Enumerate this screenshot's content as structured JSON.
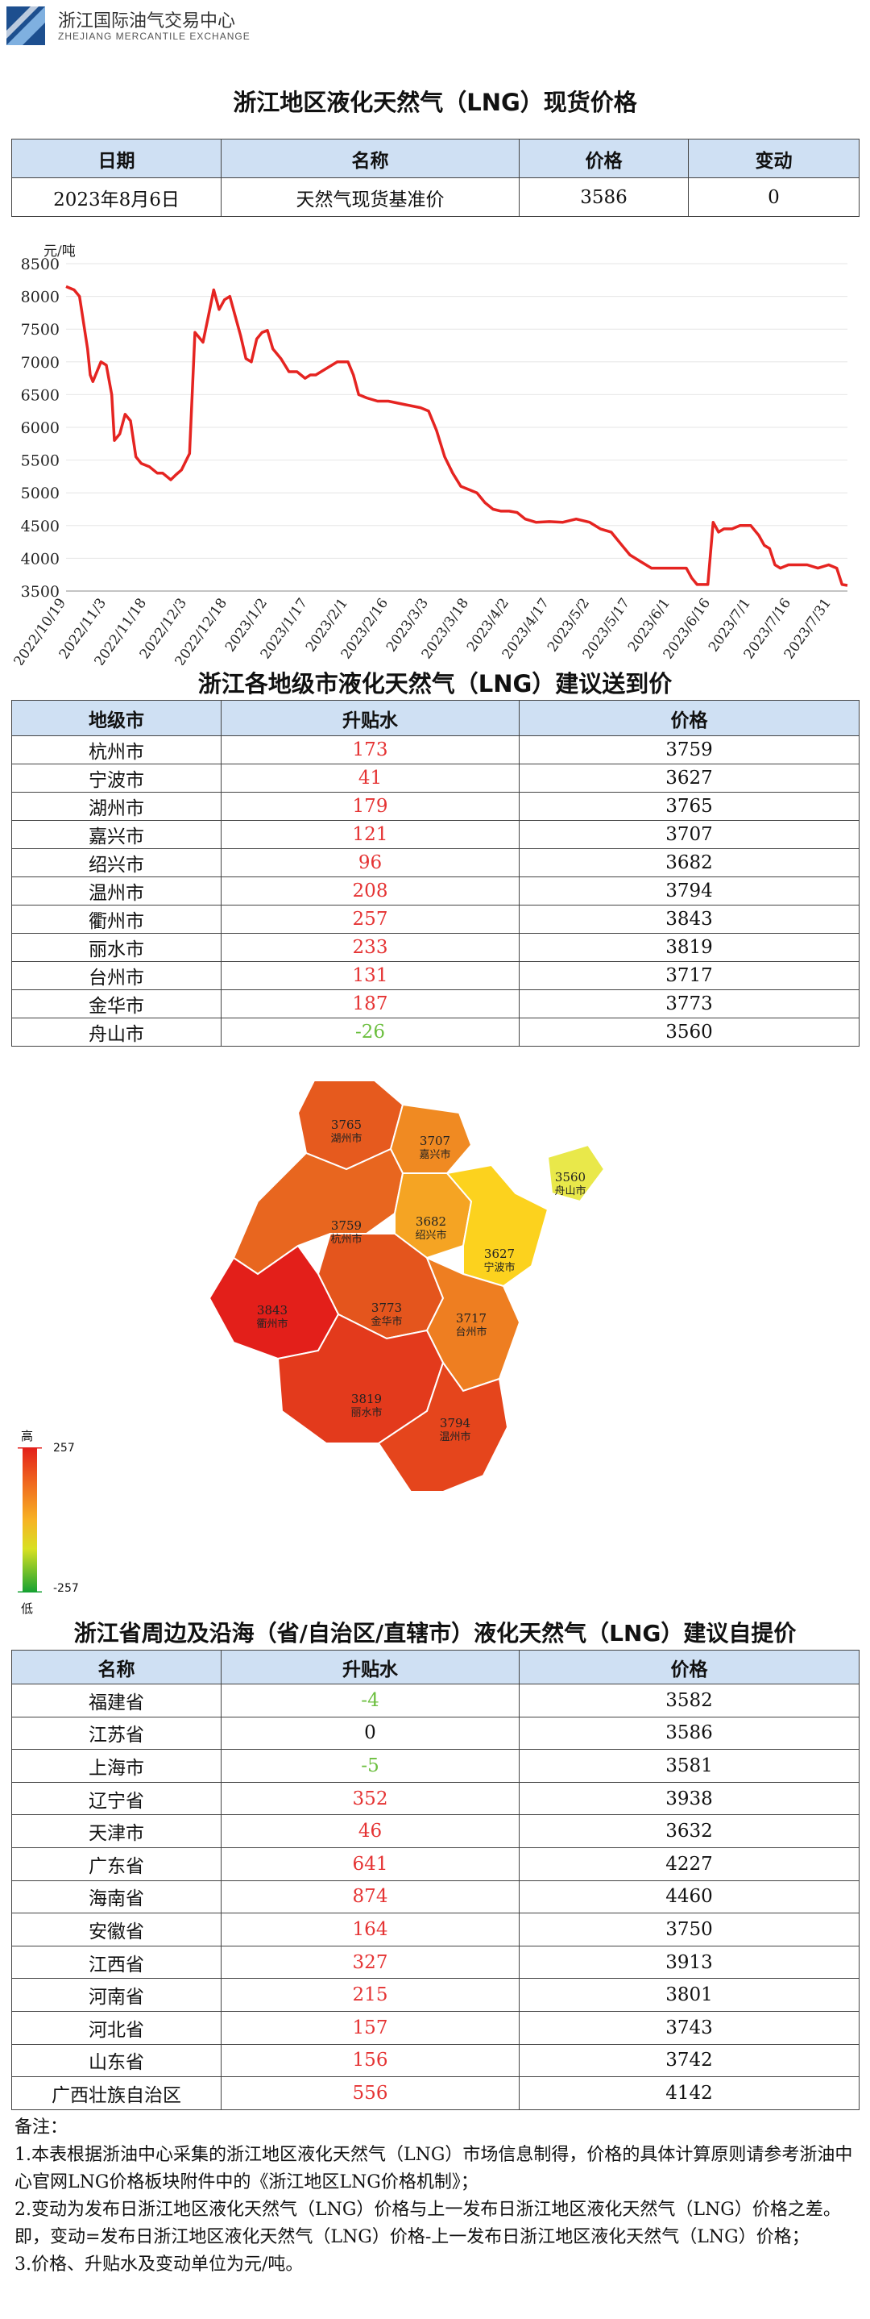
{
  "header": {
    "org_cn": "浙江国际油气交易中心",
    "org_en": "ZHEJIANG MERCANTILE EXCHANGE"
  },
  "spot": {
    "title": "浙江地区液化天然气（LNG）现货价格",
    "headers": [
      "日期",
      "名称",
      "价格",
      "变动"
    ],
    "row": [
      "2023年8月6日",
      "天然气现货基准价",
      "3586",
      "0"
    ]
  },
  "chart_data": {
    "type": "line",
    "ylabel": "元/吨",
    "ylim": [
      3500,
      8500
    ],
    "yticks": [
      3500,
      4000,
      4500,
      5000,
      5500,
      6000,
      6500,
      7000,
      7500,
      8000,
      8500
    ],
    "xticks": [
      "2022/10/19",
      "2022/11/3",
      "2022/11/18",
      "2022/12/3",
      "2022/12/18",
      "2023/1/2",
      "2023/1/17",
      "2023/2/1",
      "2023/2/16",
      "2023/3/3",
      "2023/3/18",
      "2023/4/2",
      "2023/4/17",
      "2023/5/2",
      "2023/5/17",
      "2023/6/1",
      "2023/6/16",
      "2023/7/1",
      "2023/7/16",
      "2023/7/31"
    ],
    "color": "#e52421",
    "grid": true,
    "x": [
      "2022/10/19",
      "2022/10/22",
      "2022/10/24",
      "2022/10/27",
      "2022/10/28",
      "2022/10/29",
      "2022/11/1",
      "2022/11/3",
      "2022/11/5",
      "2022/11/6",
      "2022/11/8",
      "2022/11/10",
      "2022/11/12",
      "2022/11/14",
      "2022/11/16",
      "2022/11/19",
      "2022/11/22",
      "2022/11/24",
      "2022/11/27",
      "2022/11/29",
      "2022/12/1",
      "2022/12/4",
      "2022/12/6",
      "2022/12/7",
      "2022/12/9",
      "2022/12/11",
      "2022/12/13",
      "2022/12/15",
      "2022/12/17",
      "2022/12/19",
      "2022/12/21",
      "2022/12/23",
      "2022/12/25",
      "2022/12/27",
      "2022/12/29",
      "2022/12/31",
      "2023/1/2",
      "2023/1/4",
      "2023/1/7",
      "2023/1/10",
      "2023/1/13",
      "2023/1/16",
      "2023/1/18",
      "2023/1/20",
      "2023/1/24",
      "2023/1/28",
      "2023/2/1",
      "2023/2/3",
      "2023/2/5",
      "2023/2/8",
      "2023/2/12",
      "2023/2/16",
      "2023/2/22",
      "2023/2/28",
      "2023/3/3",
      "2023/3/6",
      "2023/3/9",
      "2023/3/12",
      "2023/3/15",
      "2023/3/18",
      "2023/3/21",
      "2023/3/24",
      "2023/3/27",
      "2023/3/30",
      "2023/4/2",
      "2023/4/5",
      "2023/4/8",
      "2023/4/12",
      "2023/4/17",
      "2023/4/22",
      "2023/4/27",
      "2023/5/2",
      "2023/5/6",
      "2023/5/10",
      "2023/5/14",
      "2023/5/17",
      "2023/5/21",
      "2023/5/25",
      "2023/5/29",
      "2023/6/1",
      "2023/6/4",
      "2023/6/7",
      "2023/6/9",
      "2023/6/11",
      "2023/6/13",
      "2023/6/15",
      "2023/6/17",
      "2023/6/19",
      "2023/6/21",
      "2023/6/24",
      "2023/6/27",
      "2023/7/1",
      "2023/7/4",
      "2023/7/6",
      "2023/7/8",
      "2023/7/10",
      "2023/7/12",
      "2023/7/15",
      "2023/7/18",
      "2023/7/22",
      "2023/7/26",
      "2023/7/30",
      "2023/8/2",
      "2023/8/4",
      "2023/8/6"
    ],
    "values": [
      8150,
      8100,
      8000,
      7200,
      6800,
      6700,
      7000,
      6950,
      6500,
      5800,
      5900,
      6200,
      6100,
      5550,
      5450,
      5400,
      5300,
      5300,
      5200,
      5280,
      5350,
      5600,
      7450,
      7400,
      7300,
      7700,
      8100,
      7800,
      7950,
      8000,
      7700,
      7400,
      7050,
      7000,
      7350,
      7450,
      7480,
      7200,
      7050,
      6850,
      6850,
      6750,
      6800,
      6800,
      6900,
      7000,
      7000,
      6800,
      6500,
      6450,
      6400,
      6400,
      6350,
      6300,
      6250,
      5950,
      5550,
      5300,
      5100,
      5050,
      5000,
      4850,
      4750,
      4720,
      4720,
      4700,
      4600,
      4550,
      4560,
      4550,
      4600,
      4550,
      4450,
      4400,
      4200,
      4050,
      3950,
      3850,
      3850,
      3850,
      3850,
      3850,
      3700,
      3600,
      3600,
      3600,
      4550,
      4400,
      4450,
      4450,
      4500,
      4500,
      4350,
      4200,
      4150,
      3900,
      3850,
      3900,
      3900,
      3900,
      3850,
      3900,
      3850,
      3600,
      3586
    ]
  },
  "cities": {
    "title": "浙江各地级市液化天然气（LNG）建议送到价",
    "headers": [
      "地级市",
      "升贴水",
      "价格"
    ],
    "rows": [
      {
        "name": "杭州市",
        "premium": "173",
        "price": "3759"
      },
      {
        "name": "宁波市",
        "premium": "41",
        "price": "3627"
      },
      {
        "name": "湖州市",
        "premium": "179",
        "price": "3765"
      },
      {
        "name": "嘉兴市",
        "premium": "121",
        "price": "3707"
      },
      {
        "name": "绍兴市",
        "premium": "96",
        "price": "3682"
      },
      {
        "name": "温州市",
        "premium": "208",
        "price": "3794"
      },
      {
        "name": "衢州市",
        "premium": "257",
        "price": "3843"
      },
      {
        "name": "丽水市",
        "premium": "233",
        "price": "3819"
      },
      {
        "name": "台州市",
        "premium": "131",
        "price": "3717"
      },
      {
        "name": "金华市",
        "premium": "187",
        "price": "3773"
      },
      {
        "name": "舟山市",
        "premium": "-26",
        "price": "3560"
      }
    ]
  },
  "map": {
    "legend_high": "高",
    "legend_low": "低",
    "legend_max": "257",
    "legend_min": "-257",
    "regions": [
      {
        "name": "湖州市",
        "price": "3765",
        "color": "#e65a1e"
      },
      {
        "name": "嘉兴市",
        "price": "3707",
        "color": "#f08a22"
      },
      {
        "name": "杭州市",
        "price": "3759",
        "color": "#e8661f"
      },
      {
        "name": "绍兴市",
        "price": "3682",
        "color": "#f5a423"
      },
      {
        "name": "宁波市",
        "price": "3627",
        "color": "#fcd21e"
      },
      {
        "name": "舟山市",
        "price": "3560",
        "color": "#e9e84a"
      },
      {
        "name": "金华市",
        "price": "3773",
        "color": "#e4551d"
      },
      {
        "name": "衢州市",
        "price": "3843",
        "color": "#e31f1a"
      },
      {
        "name": "台州市",
        "price": "3717",
        "color": "#ee7e21"
      },
      {
        "name": "丽水市",
        "price": "3819",
        "color": "#e33a1c"
      },
      {
        "name": "温州市",
        "price": "3794",
        "color": "#e5451c"
      }
    ]
  },
  "provinces": {
    "title": "浙江省周边及沿海（省/自治区/直辖市）液化天然气（LNG）建议自提价",
    "headers": [
      "名称",
      "升贴水",
      "价格"
    ],
    "rows": [
      {
        "name": "福建省",
        "premium": "-4",
        "price": "3582"
      },
      {
        "name": "江苏省",
        "premium": "0",
        "price": "3586"
      },
      {
        "name": "上海市",
        "premium": "-5",
        "price": "3581"
      },
      {
        "name": "辽宁省",
        "premium": "352",
        "price": "3938"
      },
      {
        "name": "天津市",
        "premium": "46",
        "price": "3632"
      },
      {
        "name": "广东省",
        "premium": "641",
        "price": "4227"
      },
      {
        "name": "海南省",
        "premium": "874",
        "price": "4460"
      },
      {
        "name": "安徽省",
        "premium": "164",
        "price": "3750"
      },
      {
        "name": "江西省",
        "premium": "327",
        "price": "3913"
      },
      {
        "name": "河南省",
        "premium": "215",
        "price": "3801"
      },
      {
        "name": "河北省",
        "premium": "157",
        "price": "3743"
      },
      {
        "name": "山东省",
        "premium": "156",
        "price": "3742"
      },
      {
        "name": "广西壮族自治区",
        "premium": "556",
        "price": "4142"
      }
    ]
  },
  "notes": {
    "title": "备注：",
    "lines": [
      "1.本表根据浙油中心采集的浙江地区液化天然气（LNG）市场信息制得，价格的具体计算原则请参考浙油中心官网LNG价格板块附件中的《浙江地区LNG价格机制》；",
      "2.变动为发布日浙江地区液化天然气（LNG）价格与上一发布日浙江地区液化天然气（LNG）价格之差。即，变动=发布日浙江地区液化天然气（LNG）价格-上一发布日浙江地区液化天然气（LNG）价格；",
      "3.价格、升贴水及变动单位为元/吨。"
    ]
  }
}
